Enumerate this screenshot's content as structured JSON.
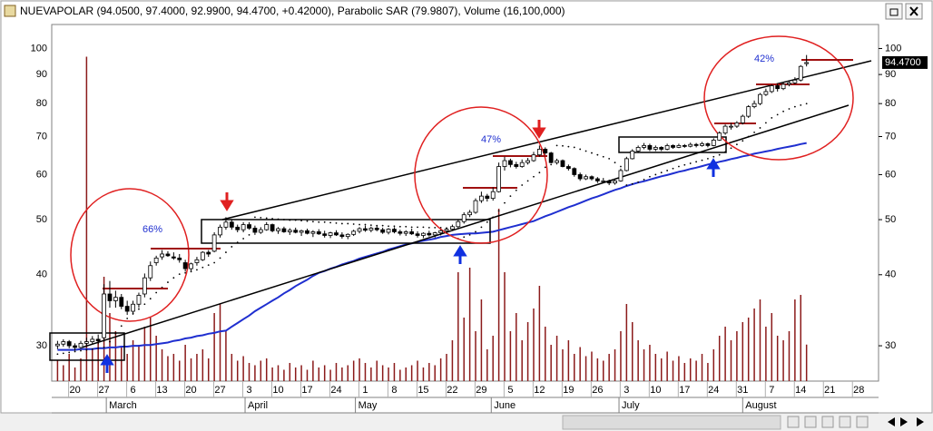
{
  "header": {
    "title": "NUEVAPOLAR (94.0500, 97.4000, 92.9900, 94.4700, +0.42000), Parabolic SAR (79.9807), Volume (16,100,000)"
  },
  "chart_data": {
    "type": "candlestick",
    "log_scale": true,
    "ylim": [
      26,
      109
    ],
    "yticks": [
      30,
      40,
      50,
      60,
      70,
      80,
      90,
      100
    ],
    "xlim": [
      -1,
      141.4
    ],
    "xticks": [
      {
        "value": 3,
        "label": "20"
      },
      {
        "value": 8,
        "label": "27"
      },
      {
        "value": 13,
        "label": "6"
      },
      {
        "value": 18,
        "label": "13"
      },
      {
        "value": 23,
        "label": "20"
      },
      {
        "value": 28,
        "label": "27"
      },
      {
        "value": 33,
        "label": "3"
      },
      {
        "value": 38,
        "label": "10"
      },
      {
        "value": 43,
        "label": "17"
      },
      {
        "value": 48,
        "label": "24"
      },
      {
        "value": 53,
        "label": "1"
      },
      {
        "value": 58,
        "label": "8"
      },
      {
        "value": 63,
        "label": "15"
      },
      {
        "value": 68,
        "label": "22"
      },
      {
        "value": 73,
        "label": "29"
      },
      {
        "value": 78,
        "label": "5"
      },
      {
        "value": 83,
        "label": "12"
      },
      {
        "value": 88,
        "label": "19"
      },
      {
        "value": 93,
        "label": "26"
      },
      {
        "value": 98,
        "label": "3"
      },
      {
        "value": 103,
        "label": "10"
      },
      {
        "value": 108,
        "label": "17"
      },
      {
        "value": 113,
        "label": "24"
      },
      {
        "value": 118,
        "label": "31"
      },
      {
        "value": 123,
        "label": "7"
      },
      {
        "value": 128,
        "label": "14"
      },
      {
        "value": 133,
        "label": "21"
      },
      {
        "value": 138,
        "label": "28"
      }
    ],
    "month_ticks": [
      {
        "value": 8.4,
        "label": "March"
      },
      {
        "value": 32.3,
        "label": "April"
      },
      {
        "value": 51.3,
        "label": "May"
      },
      {
        "value": 74.7,
        "label": "June"
      },
      {
        "value": 96.7,
        "label": "July"
      },
      {
        "value": 118,
        "label": "August"
      }
    ],
    "up_color": "#ffffff",
    "down_color": "#000000",
    "ohlc": [
      [
        30.0,
        30.6,
        29.6,
        30.2
      ],
      [
        30.2,
        30.8,
        29.9,
        30.5
      ],
      [
        30.5,
        30.7,
        29.7,
        30.0
      ],
      [
        30.0,
        30.3,
        29.4,
        29.8
      ],
      [
        29.8,
        30.6,
        29.6,
        30.3
      ],
      [
        30.3,
        31.0,
        30.0,
        30.5
      ],
      [
        30.5,
        31.2,
        30.2,
        30.8
      ],
      [
        30.8,
        31.4,
        30.2,
        30.6
      ],
      [
        31.0,
        38.5,
        30.5,
        37.0
      ],
      [
        37.0,
        39.0,
        35.0,
        36.0
      ],
      [
        36.0,
        37.5,
        35.0,
        36.5
      ],
      [
        36.5,
        37.0,
        34.8,
        35.2
      ],
      [
        35.2,
        36.0,
        34.0,
        34.5
      ],
      [
        34.5,
        36.0,
        34.0,
        35.5
      ],
      [
        35.5,
        37.2,
        35.0,
        36.8
      ],
      [
        37.0,
        40.2,
        36.5,
        39.5
      ],
      [
        39.5,
        42.2,
        39.0,
        41.5
      ],
      [
        42.0,
        43.2,
        41.5,
        42.8
      ],
      [
        43.0,
        44.2,
        42.5,
        43.5
      ],
      [
        43.5,
        44.0,
        43.0,
        43.2
      ],
      [
        43.0,
        43.8,
        42.5,
        42.8
      ],
      [
        42.8,
        43.5,
        42.0,
        42.5
      ],
      [
        42.0,
        42.5,
        40.5,
        41.0
      ],
      [
        41.0,
        42.0,
        40.5,
        41.8
      ],
      [
        42.0,
        43.0,
        41.5,
        42.5
      ],
      [
        42.5,
        44.0,
        42.3,
        43.8
      ],
      [
        43.8,
        44.2,
        43.0,
        43.5
      ],
      [
        44.0,
        47.5,
        43.8,
        47.0
      ],
      [
        47.0,
        49.0,
        46.5,
        48.5
      ],
      [
        48.5,
        50.5,
        48.0,
        49.5
      ],
      [
        49.5,
        50.0,
        48.0,
        48.5
      ],
      [
        48.5,
        49.0,
        47.5,
        48.0
      ],
      [
        48.0,
        49.5,
        47.5,
        49.0
      ],
      [
        49.0,
        49.5,
        48.0,
        48.3
      ],
      [
        48.3,
        48.8,
        47.0,
        47.5
      ],
      [
        47.5,
        48.5,
        47.2,
        48.0
      ],
      [
        48.0,
        49.5,
        47.8,
        49.0
      ],
      [
        49.0,
        49.2,
        47.5,
        47.8
      ],
      [
        47.8,
        48.5,
        47.2,
        48.2
      ],
      [
        48.2,
        48.6,
        47.4,
        47.6
      ],
      [
        47.6,
        48.3,
        47.0,
        47.9
      ],
      [
        47.9,
        48.4,
        47.3,
        47.5
      ],
      [
        47.5,
        48.0,
        46.8,
        47.8
      ],
      [
        47.8,
        48.2,
        47.1,
        47.3
      ],
      [
        47.3,
        47.9,
        46.6,
        47.6
      ],
      [
        47.6,
        48.1,
        47.0,
        47.2
      ],
      [
        47.2,
        47.8,
        46.5,
        46.9
      ],
      [
        46.9,
        47.6,
        46.4,
        47.4
      ],
      [
        47.4,
        47.9,
        46.8,
        47.0
      ],
      [
        47.0,
        47.5,
        46.3,
        46.7
      ],
      [
        46.7,
        47.3,
        46.2,
        47.1
      ],
      [
        47.1,
        48.0,
        46.8,
        47.7
      ],
      [
        47.7,
        48.5,
        47.3,
        48.2
      ],
      [
        48.2,
        48.8,
        47.6,
        47.9
      ],
      [
        47.9,
        48.6,
        47.5,
        48.3
      ],
      [
        48.3,
        48.9,
        47.7,
        48.0
      ],
      [
        48.0,
        48.4,
        47.2,
        47.5
      ],
      [
        47.5,
        48.3,
        47.1,
        48.1
      ],
      [
        48.1,
        48.5,
        47.3,
        47.6
      ],
      [
        47.6,
        48.0,
        46.9,
        47.3
      ],
      [
        47.3,
        47.9,
        46.8,
        47.6
      ],
      [
        47.6,
        48.2,
        47.0,
        47.2
      ],
      [
        47.2,
        47.7,
        46.5,
        46.9
      ],
      [
        46.9,
        47.5,
        46.4,
        47.3
      ],
      [
        47.3,
        47.8,
        46.7,
        47.0
      ],
      [
        47.0,
        47.6,
        46.5,
        47.4
      ],
      [
        47.4,
        48.0,
        46.9,
        47.8
      ],
      [
        47.8,
        48.5,
        47.3,
        48.1
      ],
      [
        48.1,
        49.0,
        47.8,
        48.6
      ],
      [
        48.6,
        50.0,
        48.3,
        49.6
      ],
      [
        49.6,
        51.5,
        49.2,
        51.0
      ],
      [
        51.0,
        52.0,
        50.5,
        51.5
      ],
      [
        51.5,
        54.5,
        51.2,
        54.0
      ],
      [
        54.0,
        56.0,
        53.5,
        55.0
      ],
      [
        55.0,
        55.5,
        53.8,
        54.5
      ],
      [
        54.5,
        57.0,
        54.0,
        56.0
      ],
      [
        56.0,
        63.0,
        55.8,
        62.0
      ],
      [
        62.0,
        64.5,
        61.0,
        63.5
      ],
      [
        63.5,
        64.0,
        61.8,
        62.5
      ],
      [
        62.5,
        63.2,
        61.5,
        62.0
      ],
      [
        62.0,
        63.8,
        61.7,
        63.0
      ],
      [
        63.0,
        64.2,
        62.5,
        63.5
      ],
      [
        63.5,
        65.8,
        63.2,
        65.0
      ],
      [
        65.0,
        67.5,
        64.5,
        66.5
      ],
      [
        66.5,
        67.0,
        65.0,
        65.5
      ],
      [
        65.5,
        65.8,
        62.8,
        63.0
      ],
      [
        63.0,
        64.0,
        62.5,
        63.5
      ],
      [
        63.5,
        63.8,
        61.8,
        62.0
      ],
      [
        62.0,
        62.5,
        61.0,
        61.5
      ],
      [
        61.5,
        61.8,
        59.5,
        60.0
      ],
      [
        60.0,
        60.5,
        58.5,
        59.0
      ],
      [
        59.0,
        60.0,
        58.7,
        59.5
      ],
      [
        59.5,
        59.8,
        58.6,
        59.0
      ],
      [
        59.0,
        59.4,
        58.0,
        58.5
      ],
      [
        58.5,
        59.2,
        58.0,
        58.5
      ],
      [
        58.5,
        58.8,
        57.5,
        58.0
      ],
      [
        58.0,
        59.0,
        57.6,
        58.5
      ],
      [
        58.5,
        61.5,
        58.3,
        61.0
      ],
      [
        61.0,
        64.5,
        60.8,
        64.0
      ],
      [
        64.0,
        66.5,
        63.8,
        66.0
      ],
      [
        66.0,
        67.5,
        65.5,
        67.0
      ],
      [
        67.0,
        68.2,
        66.5,
        67.5
      ],
      [
        67.5,
        68.0,
        66.0,
        66.5
      ],
      [
        66.5,
        67.5,
        66.0,
        67.0
      ],
      [
        67.0,
        67.3,
        66.0,
        66.5
      ],
      [
        66.5,
        68.0,
        66.2,
        67.5
      ],
      [
        67.5,
        67.8,
        66.6,
        67.0
      ],
      [
        67.0,
        68.0,
        66.8,
        67.5
      ],
      [
        67.5,
        67.9,
        66.9,
        67.3
      ],
      [
        67.3,
        68.3,
        67.0,
        67.8
      ],
      [
        67.8,
        68.2,
        67.0,
        67.5
      ],
      [
        67.5,
        68.5,
        67.2,
        68.0
      ],
      [
        68.0,
        68.3,
        67.0,
        67.5
      ],
      [
        67.5,
        69.5,
        67.3,
        69.0
      ],
      [
        69.0,
        71.5,
        68.8,
        71.0
      ],
      [
        71.0,
        73.5,
        70.5,
        73.0
      ],
      [
        73.0,
        74.0,
        72.0,
        73.0
      ],
      [
        73.0,
        74.5,
        72.5,
        74.0
      ],
      [
        74.0,
        76.5,
        73.5,
        76.0
      ],
      [
        76.0,
        79.5,
        75.5,
        79.0
      ],
      [
        79.0,
        81.0,
        78.5,
        80.0
      ],
      [
        80.0,
        83.5,
        79.5,
        83.0
      ],
      [
        83.0,
        85.0,
        82.5,
        84.0
      ],
      [
        84.0,
        86.5,
        83.5,
        86.0
      ],
      [
        86.0,
        86.8,
        84.0,
        85.0
      ],
      [
        85.0,
        87.0,
        84.5,
        86.5
      ],
      [
        86.5,
        87.5,
        85.8,
        87.0
      ],
      [
        87.0,
        89.0,
        86.5,
        88.0
      ],
      [
        88.0,
        93.5,
        87.5,
        93.0
      ],
      [
        94.05,
        97.4,
        92.99,
        94.47
      ]
    ],
    "volume": {
      "color": "#8b1a1a",
      "ylim": [
        0,
        156000000
      ],
      "values": [
        9000000,
        7000000,
        12000000,
        6000000,
        10000000,
        143000000,
        14000000,
        18000000,
        46000000,
        30000000,
        22000000,
        15000000,
        12000000,
        18000000,
        16000000,
        24000000,
        28000000,
        20000000,
        14000000,
        11000000,
        12000000,
        9000000,
        16000000,
        10000000,
        12000000,
        14000000,
        10000000,
        30000000,
        34000000,
        22000000,
        12000000,
        9000000,
        11000000,
        8000000,
        7000000,
        9000000,
        10000000,
        6000000,
        7000000,
        5000000,
        8000000,
        6000000,
        7000000,
        5000000,
        9000000,
        6000000,
        7000000,
        5000000,
        8000000,
        6000000,
        7000000,
        9000000,
        10000000,
        8000000,
        6000000,
        9000000,
        7000000,
        6000000,
        8000000,
        5000000,
        6000000,
        7000000,
        9000000,
        6000000,
        8000000,
        7000000,
        10000000,
        12000000,
        18000000,
        48000000,
        28000000,
        50000000,
        22000000,
        36000000,
        14000000,
        20000000,
        76000000,
        48000000,
        22000000,
        30000000,
        18000000,
        26000000,
        32000000,
        42000000,
        24000000,
        16000000,
        20000000,
        14000000,
        18000000,
        12000000,
        15000000,
        11000000,
        13000000,
        10000000,
        9000000,
        12000000,
        14000000,
        22000000,
        34000000,
        26000000,
        18000000,
        14000000,
        16000000,
        12000000,
        10000000,
        13000000,
        9000000,
        11000000,
        8000000,
        10000000,
        9000000,
        12000000,
        8000000,
        14000000,
        20000000,
        24000000,
        18000000,
        22000000,
        26000000,
        28000000,
        32000000,
        36000000,
        24000000,
        30000000,
        20000000,
        18000000,
        22000000,
        36000000,
        38000000,
        16100000
      ]
    },
    "moving_average": {
      "color": "#1f2fd0",
      "values": [
        29.5,
        29.5,
        29.5,
        29.5,
        29.6,
        29.6,
        29.6,
        29.7,
        29.7,
        29.8,
        29.8,
        29.9,
        29.9,
        30.0,
        30.0,
        30.1,
        30.1,
        30.2,
        30.3,
        30.4,
        30.6,
        30.7,
        30.9,
        31.0,
        31.2,
        31.3,
        31.5,
        31.6,
        31.8,
        31.9,
        32.4,
        32.9,
        33.4,
        33.9,
        34.5,
        35.0,
        35.5,
        36.0,
        36.5,
        37.1,
        37.6,
        38.2,
        38.7,
        39.2,
        39.8,
        40.3,
        40.6,
        41.0,
        41.3,
        41.7,
        42.0,
        42.3,
        42.7,
        43.0,
        43.3,
        43.6,
        43.9,
        44.3,
        44.6,
        44.9,
        45.2,
        45.4,
        45.7,
        45.9,
        46.1,
        46.3,
        46.6,
        46.8,
        47.0,
        47.1,
        47.2,
        47.3,
        47.3,
        47.4,
        47.5,
        47.6,
        47.9,
        48.2,
        48.5,
        48.8,
        49.1,
        49.4,
        49.7,
        50.2,
        50.7,
        51.1,
        51.6,
        52.1,
        52.6,
        53.0,
        53.5,
        54.0,
        54.5,
        54.9,
        55.4,
        55.9,
        56.4,
        56.8,
        57.3,
        57.7,
        58.1,
        58.4,
        58.8,
        59.2,
        59.6,
        59.9,
        60.3,
        60.7,
        61.0,
        61.4,
        61.7,
        62.1,
        62.5,
        62.8,
        63.2,
        63.5,
        63.9,
        64.2,
        64.6,
        64.9,
        65.3,
        65.6,
        65.9,
        66.2,
        66.6,
        66.9,
        67.2,
        67.5,
        67.9,
        68.2
      ]
    },
    "sar": {
      "color": "#000000",
      "values": [
        29.0,
        29.1,
        29.2,
        29.3,
        29.4,
        29.5,
        29.6,
        29.7,
        29.8,
        30.5,
        31.5,
        32.5,
        33.5,
        34.2,
        34.8,
        35.5,
        36.3,
        37.2,
        38.0,
        38.8,
        39.5,
        40.1,
        40.3,
        40.5,
        40.8,
        41.2,
        41.6,
        42.0,
        42.8,
        43.8,
        44.8,
        45.6,
        46.3,
        47.0,
        50.5,
        50.4,
        50.3,
        50.2,
        50.1,
        50.0,
        49.9,
        49.9,
        49.8,
        49.7,
        49.6,
        49.5,
        49.5,
        49.4,
        49.3,
        49.2,
        49.2,
        49.1,
        49.0,
        49.0,
        48.9,
        48.8,
        48.8,
        48.7,
        48.7,
        48.6,
        48.6,
        48.5,
        48.5,
        48.5,
        48.4,
        48.4,
        48.4,
        48.3,
        48.3,
        46.3,
        46.6,
        47.0,
        47.6,
        48.5,
        49.5,
        50.5,
        51.8,
        53.5,
        55.0,
        56.3,
        57.5,
        58.5,
        59.5,
        60.5,
        61.8,
        62.5,
        67.5,
        67.4,
        67.2,
        67.0,
        66.5,
        66.0,
        65.5,
        65.0,
        64.5,
        64.0,
        63.0,
        62.0,
        57.5,
        57.8,
        58.2,
        58.8,
        59.5,
        60.0,
        60.5,
        61.0,
        61.5,
        62.0,
        62.4,
        62.8,
        63.2,
        63.6,
        64.0,
        64.5,
        65.0,
        65.8,
        66.8,
        67.8,
        68.8,
        70.0,
        71.2,
        72.5,
        74.0,
        75.5,
        76.5,
        77.5,
        78.3,
        79.0,
        79.5,
        79.98
      ]
    },
    "last_price": {
      "value": 94.47,
      "label": "94.4700"
    },
    "annotations": [
      "66%",
      "47%",
      "42%"
    ]
  }
}
